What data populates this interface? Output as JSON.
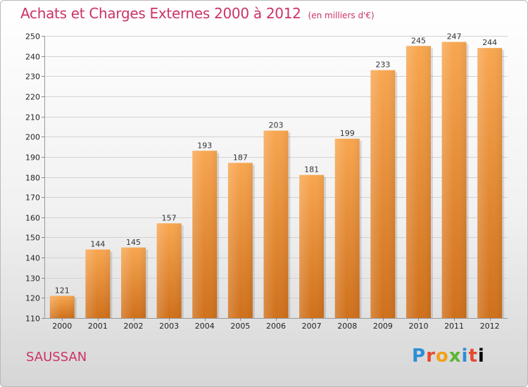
{
  "title": "Achats et Charges Externes 2000 à 2012",
  "subtitle": "(en milliers d'€)",
  "commune": "SAUSSAN",
  "logo": [
    "P",
    "r",
    "o",
    "x",
    "i",
    "t",
    "i"
  ],
  "colors": {
    "title": "#cc3366",
    "bar_light": "#f7a24e",
    "bar_dark": "#d0711c"
  },
  "chart_data": {
    "type": "bar",
    "title": "Achats et Charges Externes 2000 à 2012",
    "subtitle": "(en milliers d'€)",
    "categories": [
      "2000",
      "2001",
      "2002",
      "2003",
      "2004",
      "2005",
      "2006",
      "2007",
      "2008",
      "2009",
      "2010",
      "2011",
      "2012"
    ],
    "values": [
      121,
      144,
      145,
      157,
      193,
      187,
      203,
      181,
      199,
      233,
      245,
      247,
      244
    ],
    "ylim": [
      110,
      250
    ],
    "yticks": [
      110,
      120,
      130,
      140,
      150,
      160,
      170,
      180,
      190,
      200,
      210,
      220,
      230,
      240,
      250
    ],
    "grid": true,
    "legend": "none"
  }
}
